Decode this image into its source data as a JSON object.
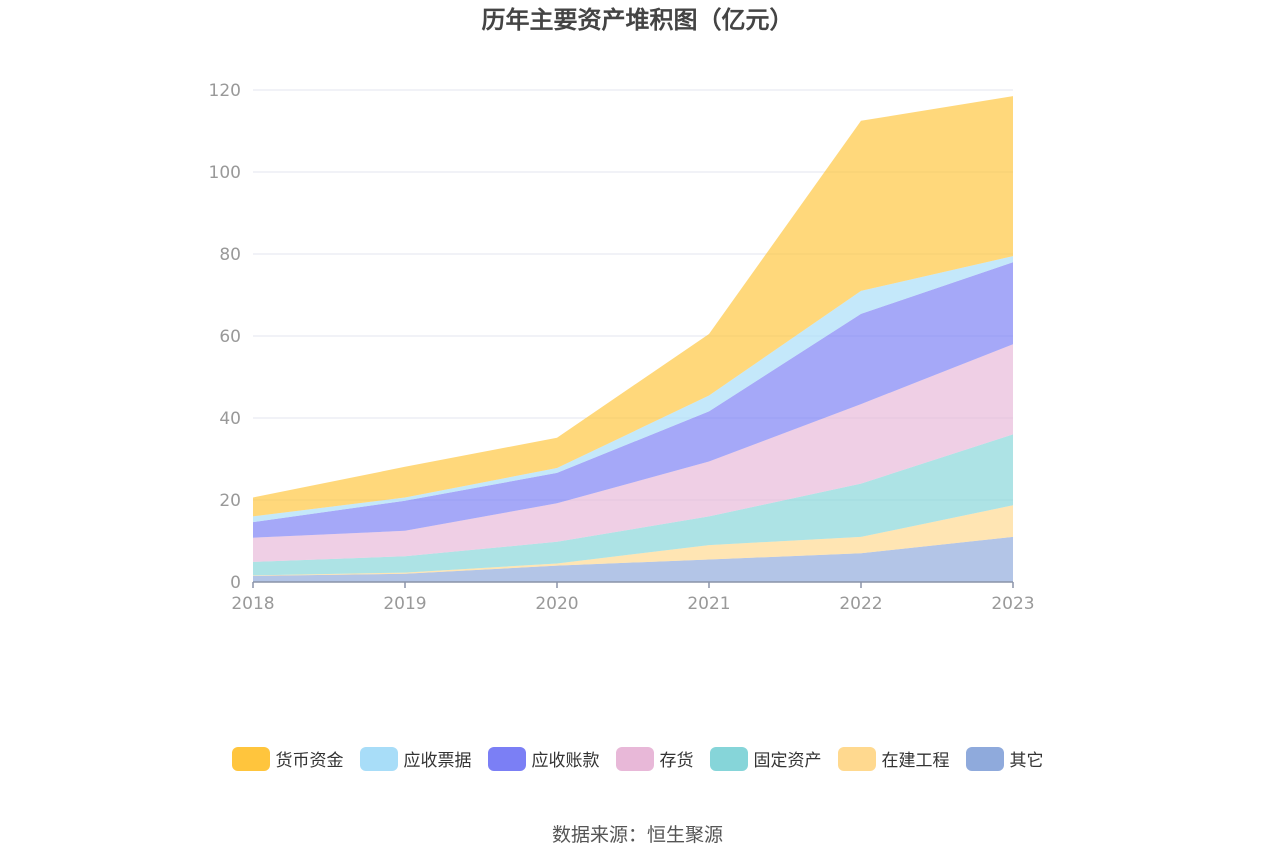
{
  "chart_data": {
    "type": "area",
    "stacked": true,
    "title": "历年主要资产堆积图（亿元）",
    "x": [
      "2018",
      "2019",
      "2020",
      "2021",
      "2022",
      "2023"
    ],
    "ylim": [
      0,
      120
    ],
    "yticks": [
      0,
      20,
      40,
      60,
      80,
      100,
      120
    ],
    "grid": true,
    "legend_position": "bottom",
    "series": [
      {
        "name": "其它",
        "color": "#8faadc",
        "values": [
          1.5,
          2.0,
          4.0,
          5.5,
          7.0,
          11.0
        ]
      },
      {
        "name": "在建工程",
        "color": "#ffd98f",
        "values": [
          0.1,
          0.3,
          0.5,
          3.5,
          4.0,
          7.7
        ]
      },
      {
        "name": "固定资产",
        "color": "#86d5d9",
        "values": [
          3.3,
          4.0,
          5.3,
          7.0,
          13.0,
          17.3
        ]
      },
      {
        "name": "存货",
        "color": "#e8b8d8",
        "values": [
          5.9,
          6.2,
          9.4,
          13.4,
          19.4,
          22.0
        ]
      },
      {
        "name": "应收账款",
        "color": "#7b7ff5",
        "values": [
          3.8,
          7.3,
          7.4,
          12.2,
          22.0,
          20.0
        ]
      },
      {
        "name": "应收票据",
        "color": "#a8ddf8",
        "values": [
          1.4,
          0.8,
          1.2,
          3.9,
          5.6,
          1.5
        ]
      },
      {
        "name": "货币资金",
        "color": "#ffc53d",
        "values": [
          4.6,
          7.5,
          7.4,
          15.0,
          41.5,
          39.0
        ]
      }
    ]
  },
  "legend_order": [
    "货币资金",
    "应收票据",
    "应收账款",
    "存货",
    "固定资产",
    "在建工程",
    "其它"
  ],
  "source_note": "数据来源：恒生聚源"
}
